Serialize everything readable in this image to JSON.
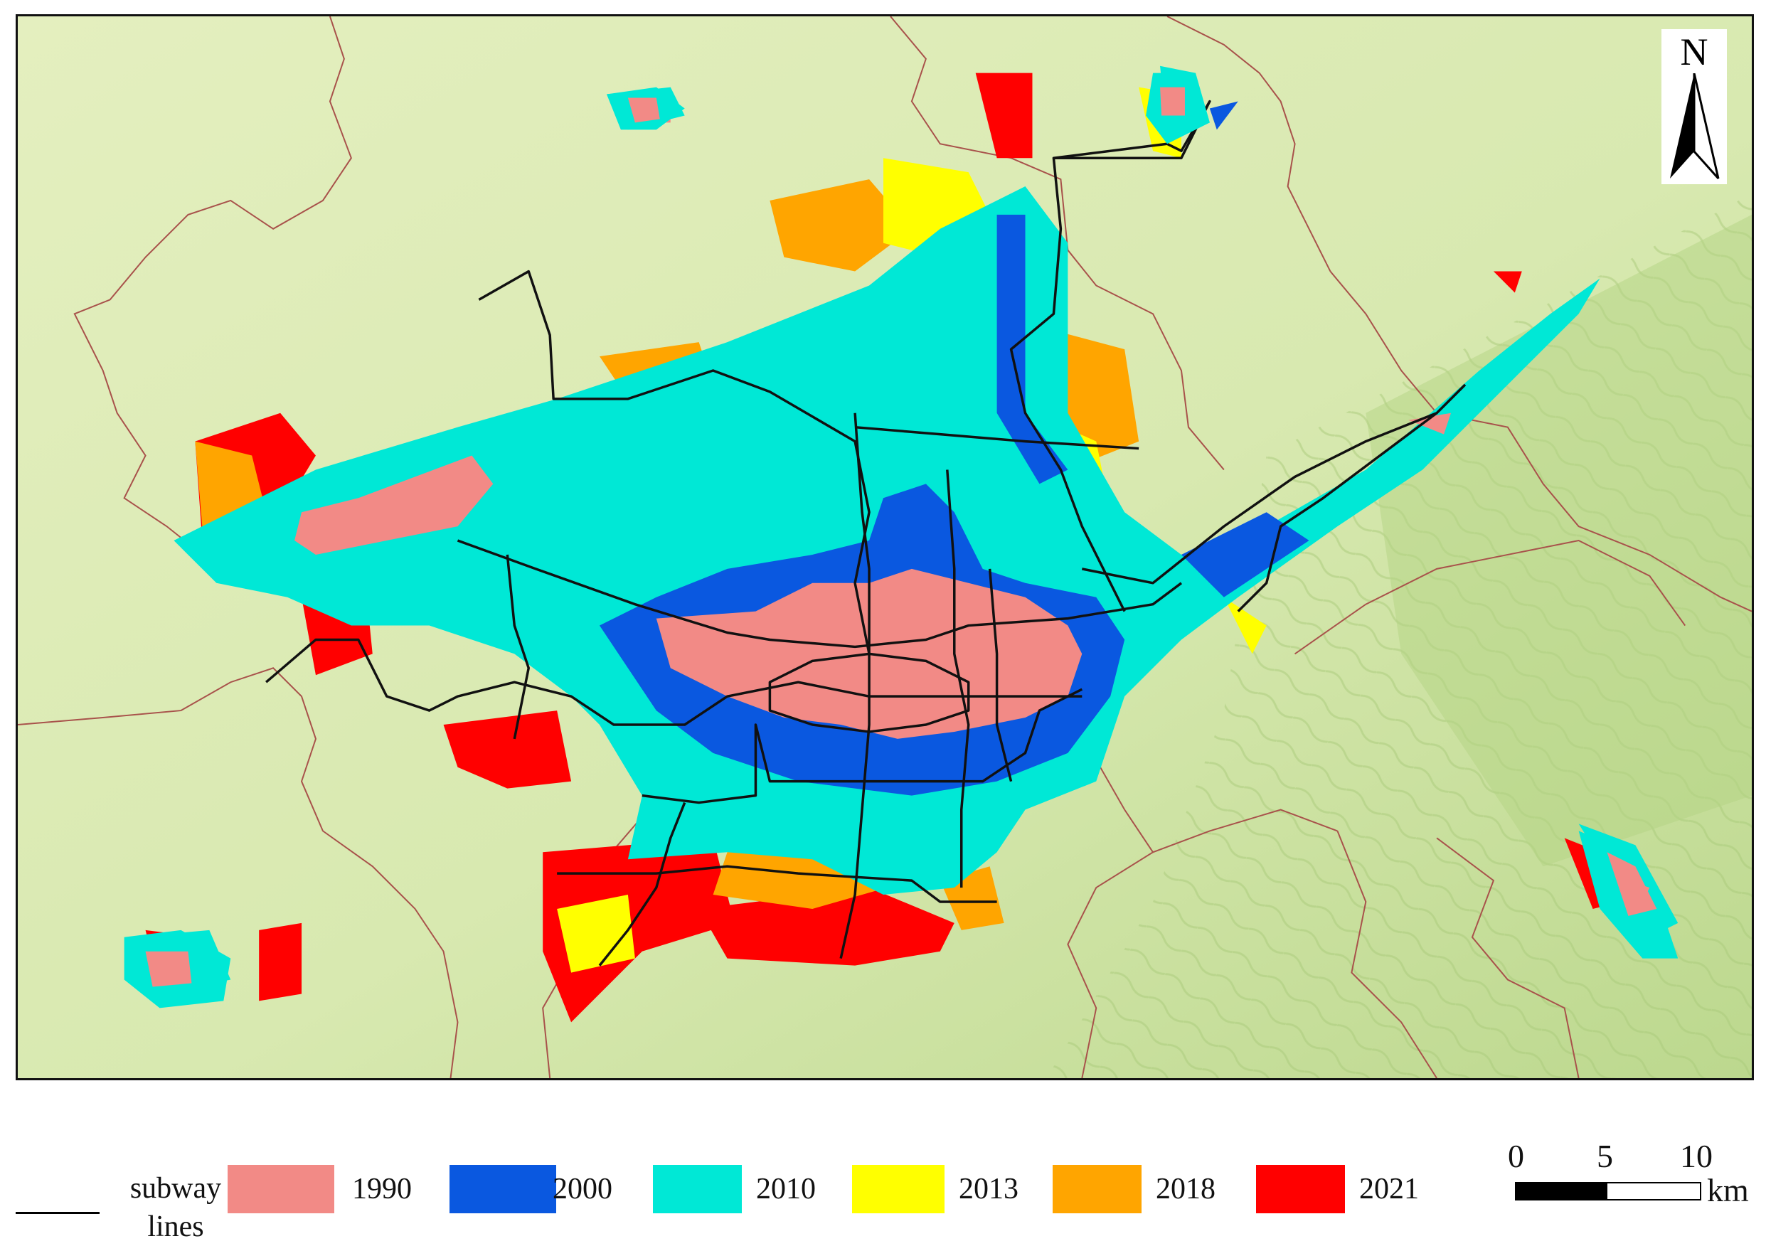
{
  "map": {
    "north_label": "N",
    "colors": {
      "terrain_light": "#dcebb5",
      "terrain_dark": "#b9d688",
      "boundary": "#a8524b",
      "subway": "#111111"
    }
  },
  "legend": {
    "subway_label_line1": "subway",
    "subway_label_line2": "lines",
    "items": [
      {
        "year": "1990",
        "color": "#f28a86"
      },
      {
        "year": "2000",
        "color": "#0a58e0"
      },
      {
        "year": "2010",
        "color": "#00e8d6"
      },
      {
        "year": "2013",
        "color": "#ffff00"
      },
      {
        "year": "2018",
        "color": "#ffa500"
      },
      {
        "year": "2021",
        "color": "#ff0000"
      }
    ]
  },
  "scale_bar": {
    "ticks": [
      "0",
      "5",
      "10"
    ],
    "unit": "km"
  }
}
